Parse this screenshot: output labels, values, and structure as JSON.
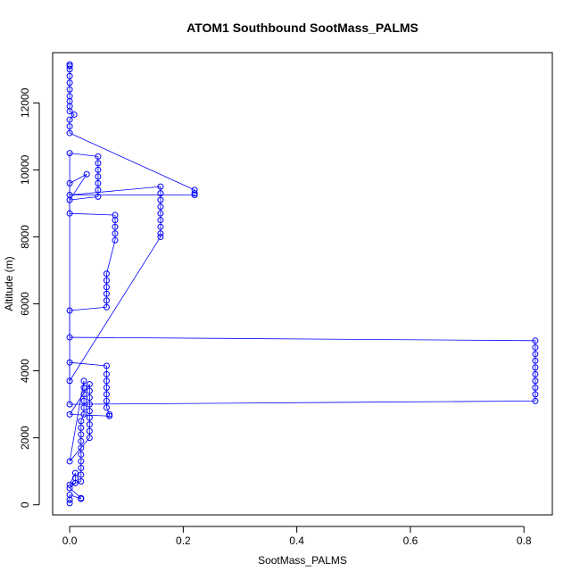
{
  "chart_data": {
    "type": "scatter",
    "title": "ATOM1 Southbound SootMass_PALMS",
    "xlabel": "SootMass_PALMS",
    "ylabel": "Altitude (m)",
    "xlim": [
      -0.03,
      0.85
    ],
    "ylim": [
      -300,
      13500
    ],
    "x_ticks": [
      "0.0",
      "0.2",
      "0.4",
      "0.6",
      "0.8"
    ],
    "x_tick_values": [
      0,
      0.2,
      0.4,
      0.6,
      0.8
    ],
    "y_ticks": [
      "0",
      "2000",
      "4000",
      "6000",
      "8000",
      "10000",
      "12000"
    ],
    "y_tick_values": [
      0,
      2000,
      4000,
      6000,
      8000,
      10000,
      12000
    ],
    "grid": false,
    "marker": "open-circle",
    "color": "#0000ff",
    "series": [
      {
        "points": [
          [
            0.0,
            13150
          ],
          [
            0.0,
            13100
          ],
          [
            0.0,
            13000
          ],
          [
            0.0,
            12800
          ],
          [
            0.0,
            12600
          ],
          [
            0.0,
            12400
          ],
          [
            0.0,
            12200
          ],
          [
            0.0,
            12050
          ],
          [
            0.0,
            11900
          ],
          [
            0.0,
            11750
          ],
          [
            0.008,
            11650
          ],
          [
            0.0,
            11500
          ],
          [
            0.0,
            11300
          ],
          [
            0.0,
            11100
          ],
          [
            0.22,
            9400
          ],
          [
            0.22,
            9300
          ],
          [
            0.22,
            9250
          ],
          [
            0.0,
            9250
          ],
          [
            0.16,
            9500
          ],
          [
            0.16,
            9300
          ],
          [
            0.16,
            9100
          ],
          [
            0.16,
            8900
          ],
          [
            0.16,
            8700
          ],
          [
            0.16,
            8500
          ],
          [
            0.16,
            8300
          ],
          [
            0.16,
            8100
          ],
          [
            0.16,
            8000
          ],
          [
            0.0,
            3700
          ],
          [
            0.0,
            10500
          ],
          [
            0.05,
            10400
          ],
          [
            0.05,
            10200
          ],
          [
            0.05,
            10000
          ],
          [
            0.05,
            9800
          ],
          [
            0.05,
            9600
          ],
          [
            0.05,
            9400
          ],
          [
            0.05,
            9200
          ],
          [
            0.0,
            9100
          ],
          [
            0.03,
            9870
          ],
          [
            0.0,
            9600
          ],
          [
            0.0,
            8700
          ],
          [
            0.08,
            8650
          ],
          [
            0.08,
            8500
          ],
          [
            0.08,
            8300
          ],
          [
            0.08,
            8100
          ],
          [
            0.08,
            7900
          ],
          [
            0.065,
            6900
          ],
          [
            0.065,
            6700
          ],
          [
            0.065,
            6500
          ],
          [
            0.065,
            6300
          ],
          [
            0.065,
            6100
          ],
          [
            0.065,
            5900
          ],
          [
            0.0,
            5800
          ],
          [
            0.0,
            5000
          ],
          [
            0.82,
            4900
          ],
          [
            0.82,
            4700
          ],
          [
            0.82,
            4500
          ],
          [
            0.82,
            4300
          ],
          [
            0.82,
            4100
          ],
          [
            0.82,
            3900
          ],
          [
            0.82,
            3700
          ],
          [
            0.82,
            3500
          ],
          [
            0.82,
            3300
          ],
          [
            0.82,
            3100
          ],
          [
            0.0,
            3000
          ],
          [
            0.0,
            4250
          ],
          [
            0.065,
            4150
          ],
          [
            0.065,
            3900
          ],
          [
            0.065,
            3700
          ],
          [
            0.065,
            3500
          ],
          [
            0.065,
            3300
          ],
          [
            0.065,
            3100
          ],
          [
            0.065,
            2900
          ],
          [
            0.07,
            2700
          ],
          [
            0.07,
            2650
          ],
          [
            0.0,
            2700
          ],
          [
            0.035,
            3600
          ],
          [
            0.035,
            3400
          ],
          [
            0.035,
            3200
          ],
          [
            0.035,
            3000
          ],
          [
            0.035,
            2800
          ],
          [
            0.035,
            2600
          ],
          [
            0.035,
            2400
          ],
          [
            0.035,
            2200
          ],
          [
            0.035,
            2000
          ],
          [
            0.0,
            1300
          ],
          [
            0.025,
            3700
          ],
          [
            0.025,
            3500
          ],
          [
            0.025,
            3300
          ],
          [
            0.025,
            3100
          ],
          [
            0.025,
            2900
          ],
          [
            0.025,
            2700
          ],
          [
            0.02,
            2500
          ],
          [
            0.02,
            2300
          ],
          [
            0.02,
            2100
          ],
          [
            0.02,
            1900
          ],
          [
            0.02,
            1700
          ],
          [
            0.02,
            1500
          ],
          [
            0.02,
            1300
          ],
          [
            0.02,
            1100
          ],
          [
            0.02,
            900
          ],
          [
            0.02,
            700
          ],
          [
            0.0,
            600
          ],
          [
            0.01,
            950
          ],
          [
            0.01,
            800
          ],
          [
            0.01,
            650
          ],
          [
            0.0,
            500
          ],
          [
            0.02,
            200
          ],
          [
            0.02,
            180
          ],
          [
            0.0,
            300
          ],
          [
            0.0,
            150
          ],
          [
            0.0,
            50
          ]
        ]
      }
    ]
  }
}
